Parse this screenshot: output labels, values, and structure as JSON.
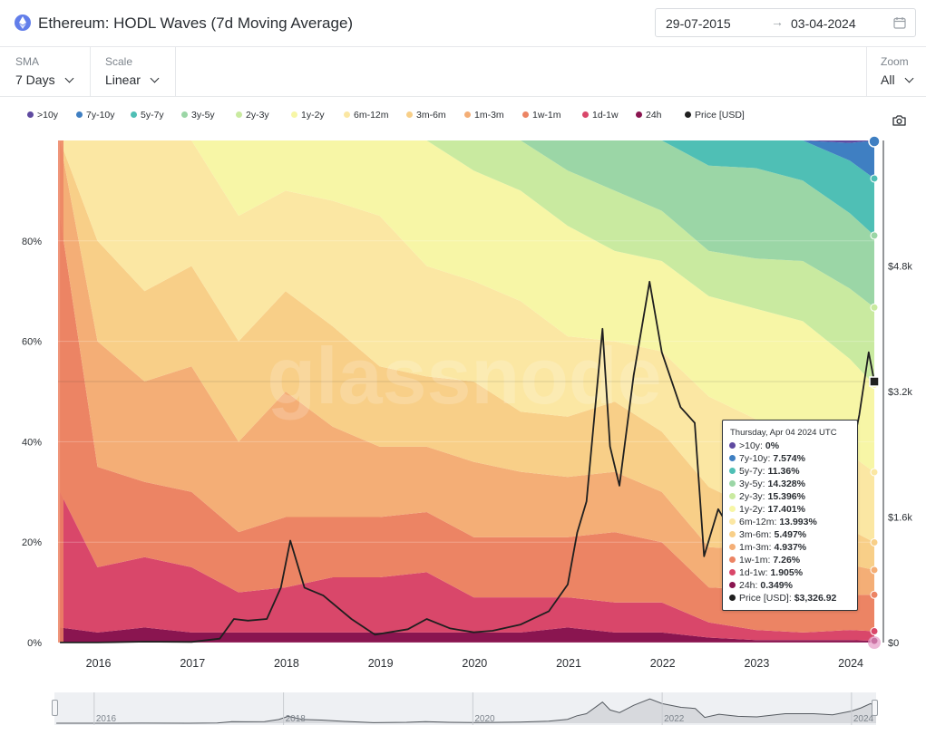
{
  "header": {
    "title": "Ethereum: HODL Waves (7d Moving Average)",
    "date_start": "29-07-2015",
    "date_arrow": "→",
    "date_end": "03-04-2024",
    "icons": [
      "ethereum-icon",
      "calendar-icon"
    ]
  },
  "controls": {
    "sma_label": "SMA",
    "sma_value": "7 Days",
    "scale_label": "Scale",
    "scale_value": "Linear",
    "zoom_label": "Zoom",
    "zoom_value": "All"
  },
  "watermark": "glassnode",
  "colors": {
    "band_10y": "#5f4aa0",
    "band_7y_10y": "#3f7fc2",
    "band_5y_7y": "#4fbfb5",
    "band_3y_5y": "#9bd6a6",
    "band_2y_3y": "#c9eaa0",
    "band_1y_2y": "#f7f6a6",
    "band_6m_12m": "#fbe7a3",
    "band_3m_6m": "#f8cf88",
    "band_1m_3m": "#f4ae76",
    "band_1w_1m": "#ec8464",
    "band_1d_1w": "#d9476a",
    "band_24h": "#8a1550",
    "price": "#1f1f1f"
  },
  "chart_data": {
    "type": "area",
    "stacked": true,
    "normalized_to_percent": true,
    "title": "Ethereum: HODL Waves (7d Moving Average)",
    "x_ticks": [
      "2016",
      "2017",
      "2018",
      "2019",
      "2020",
      "2021",
      "2022",
      "2023",
      "2024"
    ],
    "y_left_ticks": [
      "0%",
      "20%",
      "40%",
      "60%",
      "80%"
    ],
    "y_right_ticks": [
      "$0",
      "$1.6k",
      "$3.2k",
      "$4.8k"
    ],
    "ylim_left": [
      0,
      100
    ],
    "ylim_right": [
      0,
      6400
    ],
    "legend_position": "top",
    "legend": [
      ">10y",
      "7y-10y",
      "5y-7y",
      "3y-5y",
      "2y-3y",
      "1y-2y",
      "6m-12m",
      "3m-6m",
      "1m-3m",
      "1w-1m",
      "1d-1w",
      "24h",
      "Price [USD]"
    ],
    "x": [
      2015.6,
      2016.0,
      2016.5,
      2017.0,
      2017.5,
      2018.0,
      2018.5,
      2019.0,
      2019.5,
      2020.0,
      2020.5,
      2021.0,
      2021.5,
      2022.0,
      2022.5,
      2023.0,
      2023.5,
      2024.0,
      2024.26
    ],
    "series": [
      {
        "name": ">10y",
        "values": [
          0,
          0,
          0,
          0,
          0,
          0,
          0,
          0,
          0,
          0,
          0,
          0,
          0,
          0,
          0,
          0,
          0,
          0,
          0
        ]
      },
      {
        "name": "7y-10y",
        "values": [
          0,
          0,
          0,
          0,
          0,
          0,
          0,
          0,
          0,
          0,
          0,
          0,
          0,
          0,
          0,
          0,
          0,
          3.5,
          7.574
        ]
      },
      {
        "name": "5y-7y",
        "values": [
          0,
          0,
          0,
          0,
          0,
          0,
          0,
          0,
          0,
          0,
          0,
          0,
          0,
          2.5,
          5,
          6.5,
          8.5,
          10.5,
          11.36
        ]
      },
      {
        "name": "3y-5y",
        "values": [
          0,
          0,
          0,
          0,
          0,
          0,
          0,
          0,
          0,
          0,
          0,
          6,
          10,
          14,
          17,
          18,
          16,
          15,
          14.328
        ]
      },
      {
        "name": "2y-3y",
        "values": [
          0,
          0,
          0,
          0,
          0,
          0,
          0,
          0,
          0,
          6,
          10,
          11,
          12,
          10,
          9,
          10,
          12,
          14,
          15.396
        ]
      },
      {
        "name": "1y-2y",
        "values": [
          0,
          0,
          0,
          0,
          15,
          10,
          12,
          15,
          25,
          22,
          22,
          22,
          18,
          18,
          20,
          22,
          26,
          19,
          17.401
        ]
      },
      {
        "name": "6m-12m",
        "values": [
          0,
          20,
          30,
          25,
          25,
          20,
          25,
          30,
          22,
          20,
          22,
          16,
          12,
          16,
          18,
          18,
          15,
          15,
          13.993
        ]
      },
      {
        "name": "3m-6m",
        "values": [
          0,
          20,
          18,
          20,
          20,
          20,
          20,
          16,
          14,
          16,
          12,
          12,
          14,
          12,
          12,
          8,
          8,
          7,
          5.497
        ]
      },
      {
        "name": "1m-3m",
        "values": [
          15,
          25,
          20,
          25,
          18,
          25,
          18,
          14,
          13,
          15,
          13,
          12,
          12,
          10,
          8,
          8,
          7,
          6,
          4.937
        ]
      },
      {
        "name": "1w-1m",
        "values": [
          55,
          20,
          15,
          15,
          12,
          14,
          12,
          12,
          12,
          12,
          12,
          12,
          14,
          12,
          7,
          8,
          6,
          7,
          7.26
        ]
      },
      {
        "name": "1d-1w",
        "values": [
          27,
          13,
          14,
          13,
          8,
          9,
          11,
          11,
          12,
          7,
          7,
          6,
          6,
          6,
          3,
          2,
          1.5,
          2,
          1.905
        ]
      },
      {
        "name": "24h",
        "values": [
          3,
          2,
          3,
          2,
          2,
          2,
          2,
          2,
          2,
          2,
          2,
          3,
          2,
          2,
          1,
          0.5,
          0.5,
          0.5,
          0.349
        ]
      }
    ],
    "price_usd": {
      "x": [
        2015.6,
        2016.0,
        2016.5,
        2017.0,
        2017.3,
        2017.45,
        2017.6,
        2017.8,
        2017.95,
        2018.05,
        2018.2,
        2018.4,
        2018.7,
        2018.95,
        2019.3,
        2019.5,
        2019.75,
        2020.0,
        2020.2,
        2020.5,
        2020.8,
        2021.0,
        2021.1,
        2021.2,
        2021.37,
        2021.45,
        2021.55,
        2021.7,
        2021.87,
        2022.0,
        2022.2,
        2022.35,
        2022.45,
        2022.6,
        2022.8,
        2023.0,
        2023.3,
        2023.6,
        2023.8,
        2024.0,
        2024.1,
        2024.2,
        2024.26
      ],
      "values": [
        1,
        1,
        12,
        8,
        50,
        300,
        280,
        300,
        700,
        1300,
        700,
        600,
        300,
        100,
        170,
        300,
        180,
        130,
        150,
        230,
        400,
        740,
        1400,
        1800,
        4000,
        2500,
        2000,
        3400,
        4600,
        3700,
        3000,
        2800,
        1100,
        1700,
        1300,
        1200,
        1800,
        1800,
        1600,
        2300,
        2900,
        3700,
        3326.92
      ]
    },
    "navigator_ticks": [
      "2016",
      "2018",
      "2020",
      "2022",
      "2024"
    ]
  },
  "tooltip": {
    "date": "Thursday, Apr 04 2024 UTC",
    "rows": [
      {
        "label": ">10y:",
        "value": "0%",
        "color": "#5f4aa0"
      },
      {
        "label": "7y-10y:",
        "value": "7.574%",
        "color": "#3f7fc2"
      },
      {
        "label": "5y-7y:",
        "value": "11.36%",
        "color": "#4fbfb5"
      },
      {
        "label": "3y-5y:",
        "value": "14.328%",
        "color": "#9bd6a6"
      },
      {
        "label": "2y-3y:",
        "value": "15.396%",
        "color": "#c9eaa0"
      },
      {
        "label": "1y-2y:",
        "value": "17.401%",
        "color": "#f7f6a6"
      },
      {
        "label": "6m-12m:",
        "value": "13.993%",
        "color": "#fbe7a3"
      },
      {
        "label": "3m-6m:",
        "value": "5.497%",
        "color": "#f8cf88"
      },
      {
        "label": "1m-3m:",
        "value": "4.937%",
        "color": "#f4ae76"
      },
      {
        "label": "1w-1m:",
        "value": "7.26%",
        "color": "#ec8464"
      },
      {
        "label": "1d-1w:",
        "value": "1.905%",
        "color": "#d9476a"
      },
      {
        "label": "24h:",
        "value": "0.349%",
        "color": "#8a1550"
      },
      {
        "label": "Price [USD]:",
        "value": "$3,326.92",
        "color": "#1f1f1f"
      }
    ]
  }
}
